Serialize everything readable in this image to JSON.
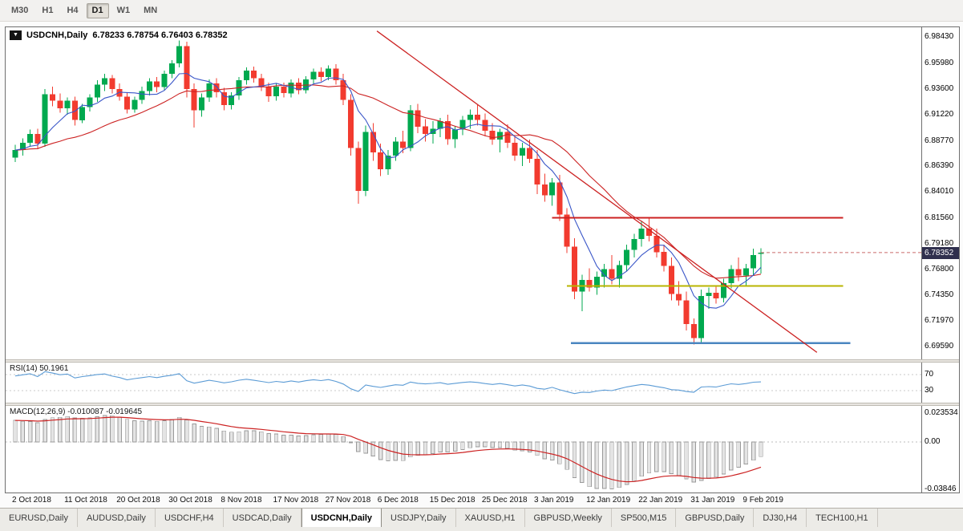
{
  "toolbar": {
    "timeframes": [
      "M30",
      "H1",
      "H4",
      "D1",
      "W1",
      "MN"
    ],
    "active": "D1"
  },
  "icons": {
    "chart_menu": "▼"
  },
  "chart": {
    "symbol_period": "USDCNH,Daily",
    "ohlc": "6.78233 6.78754 6.76403 6.78352",
    "current_price": "6.78352",
    "price_axis": [
      "6.98430",
      "6.95980",
      "6.93600",
      "6.91220",
      "6.88770",
      "6.86390",
      "6.84010",
      "6.81560",
      "6.79180",
      "6.76800",
      "6.74350",
      "6.71970",
      "6.69590"
    ],
    "time_axis": [
      "2 Oct 2018",
      "11 Oct 2018",
      "20 Oct 2018",
      "30 Oct 2018",
      "8 Nov 2018",
      "17 Nov 2018",
      "27 Nov 2018",
      "6 Dec 2018",
      "15 Dec 2018",
      "25 Dec 2018",
      "3 Jan 2019",
      "12 Jan 2019",
      "22 Jan 2019",
      "31 Jan 2019",
      "9 Feb 2019"
    ]
  },
  "rsi": {
    "label": "RSI(14) 50.1961"
  },
  "macd": {
    "label": "MACD(12,26,9) -0.010087 -0.019645",
    "scale": [
      "0.023534",
      "0.00",
      "-0.03846"
    ]
  },
  "tabs": {
    "items": [
      "EURUSD,Daily",
      "AUDUSD,Daily",
      "USDCHF,H4",
      "USDCAD,Daily",
      "USDCNH,Daily",
      "USDJPY,Daily",
      "XAUUSD,H1",
      "GBPUSD,Weekly",
      "SP500,M15",
      "GBPUSD,Daily",
      "DJ30,H4",
      "TECH100,H1"
    ],
    "active_index": 4
  },
  "chart_data": {
    "type": "candlestick",
    "symbol": "USDCNH",
    "timeframe": "Daily",
    "price_range": [
      6.684,
      6.9935
    ],
    "colors": {
      "up": "#00a94f",
      "down": "#f23b2f",
      "price_line": "#c96a6a"
    },
    "candles": [
      [
        6.872,
        6.884,
        6.868,
        6.879
      ],
      [
        6.879,
        6.89,
        6.874,
        6.886
      ],
      [
        6.886,
        6.898,
        6.882,
        6.894
      ],
      [
        6.894,
        6.899,
        6.88,
        6.885
      ],
      [
        6.885,
        6.936,
        6.882,
        6.931
      ],
      [
        6.931,
        6.938,
        6.92,
        6.925
      ],
      [
        6.925,
        6.932,
        6.914,
        6.918
      ],
      [
        6.918,
        6.928,
        6.912,
        6.925
      ],
      [
        6.925,
        6.929,
        6.902,
        6.907
      ],
      [
        6.907,
        6.922,
        6.904,
        6.919
      ],
      [
        6.919,
        6.931,
        6.915,
        6.928
      ],
      [
        6.928,
        6.944,
        6.924,
        6.94
      ],
      [
        6.94,
        6.95,
        6.934,
        6.946
      ],
      [
        6.946,
        6.949,
        6.932,
        6.936
      ],
      [
        6.936,
        6.941,
        6.925,
        6.929
      ],
      [
        6.929,
        6.933,
        6.913,
        6.917
      ],
      [
        6.917,
        6.929,
        6.914,
        6.926
      ],
      [
        6.926,
        6.938,
        6.922,
        6.934
      ],
      [
        6.934,
        6.946,
        6.93,
        6.943
      ],
      [
        6.943,
        6.947,
        6.933,
        6.938
      ],
      [
        6.938,
        6.953,
        6.935,
        6.95
      ],
      [
        6.95,
        6.963,
        6.946,
        6.96
      ],
      [
        6.96,
        6.981,
        6.956,
        6.976
      ],
      [
        6.976,
        6.98,
        6.928,
        6.936
      ],
      [
        6.936,
        6.941,
        6.9,
        6.916
      ],
      [
        6.916,
        6.932,
        6.91,
        6.928
      ],
      [
        6.928,
        6.945,
        6.924,
        6.941
      ],
      [
        6.941,
        6.946,
        6.928,
        6.933
      ],
      [
        6.933,
        6.937,
        6.916,
        6.921
      ],
      [
        6.921,
        6.933,
        6.917,
        6.93
      ],
      [
        6.93,
        6.947,
        6.926,
        6.944
      ],
      [
        6.944,
        6.956,
        6.94,
        6.953
      ],
      [
        6.953,
        6.957,
        6.942,
        6.946
      ],
      [
        6.946,
        6.95,
        6.934,
        6.938
      ],
      [
        6.938,
        6.942,
        6.924,
        6.929
      ],
      [
        6.929,
        6.941,
        6.925,
        6.938
      ],
      [
        6.938,
        6.942,
        6.928,
        6.932
      ],
      [
        6.932,
        6.945,
        6.928,
        6.942
      ],
      [
        6.942,
        6.946,
        6.931,
        6.935
      ],
      [
        6.935,
        6.948,
        6.932,
        6.945
      ],
      [
        6.945,
        6.955,
        6.941,
        6.952
      ],
      [
        6.952,
        6.956,
        6.943,
        6.947
      ],
      [
        6.947,
        6.958,
        6.944,
        6.955
      ],
      [
        6.955,
        6.959,
        6.94,
        6.944
      ],
      [
        6.944,
        6.95,
        6.921,
        6.926
      ],
      [
        6.926,
        6.931,
        6.874,
        6.881
      ],
      [
        6.881,
        6.887,
        6.829,
        6.841
      ],
      [
        6.841,
        6.902,
        6.836,
        6.896
      ],
      [
        6.896,
        6.904,
        6.869,
        6.877
      ],
      [
        6.877,
        6.885,
        6.855,
        6.861
      ],
      [
        6.861,
        6.879,
        6.856,
        6.874
      ],
      [
        6.874,
        6.891,
        6.869,
        6.887
      ],
      [
        6.887,
        6.897,
        6.876,
        6.881
      ],
      [
        6.881,
        6.921,
        6.878,
        6.916
      ],
      [
        6.916,
        6.922,
        6.895,
        6.901
      ],
      [
        6.901,
        6.908,
        6.887,
        6.894
      ],
      [
        6.894,
        6.906,
        6.885,
        6.899
      ],
      [
        6.899,
        6.909,
        6.891,
        6.906
      ],
      [
        6.906,
        6.912,
        6.884,
        6.889
      ],
      [
        6.889,
        6.901,
        6.881,
        6.898
      ],
      [
        6.898,
        6.911,
        6.893,
        6.907
      ],
      [
        6.907,
        6.917,
        6.899,
        6.912
      ],
      [
        6.912,
        6.921,
        6.902,
        6.907
      ],
      [
        6.907,
        6.913,
        6.892,
        6.897
      ],
      [
        6.897,
        6.904,
        6.884,
        6.889
      ],
      [
        6.889,
        6.899,
        6.877,
        6.896
      ],
      [
        6.896,
        6.903,
        6.881,
        6.886
      ],
      [
        6.886,
        6.891,
        6.869,
        6.874
      ],
      [
        6.874,
        6.886,
        6.864,
        6.881
      ],
      [
        6.881,
        6.889,
        6.867,
        6.871
      ],
      [
        6.871,
        6.879,
        6.838,
        6.847
      ],
      [
        6.847,
        6.857,
        6.831,
        6.837
      ],
      [
        6.837,
        6.853,
        6.827,
        6.849
      ],
      [
        6.849,
        6.856,
        6.813,
        6.819
      ],
      [
        6.819,
        6.825,
        6.783,
        6.789
      ],
      [
        6.789,
        6.797,
        6.74,
        6.747
      ],
      [
        6.747,
        6.763,
        6.729,
        6.758
      ],
      [
        6.758,
        6.769,
        6.747,
        6.751
      ],
      [
        6.751,
        6.766,
        6.744,
        6.761
      ],
      [
        6.761,
        6.773,
        6.751,
        6.768
      ],
      [
        6.768,
        6.781,
        6.754,
        6.759
      ],
      [
        6.759,
        6.776,
        6.751,
        6.772
      ],
      [
        6.772,
        6.791,
        6.766,
        6.786
      ],
      [
        6.786,
        6.801,
        6.779,
        6.796
      ],
      [
        6.796,
        6.813,
        6.789,
        6.806
      ],
      [
        6.806,
        6.816,
        6.794,
        6.799
      ],
      [
        6.799,
        6.806,
        6.779,
        6.784
      ],
      [
        6.784,
        6.791,
        6.766,
        6.771
      ],
      [
        6.771,
        6.779,
        6.739,
        6.745
      ],
      [
        6.745,
        6.757,
        6.734,
        6.739
      ],
      [
        6.739,
        6.747,
        6.711,
        6.717
      ],
      [
        6.717,
        6.722,
        6.698,
        6.704
      ],
      [
        6.704,
        6.749,
        6.699,
        6.743
      ],
      [
        6.743,
        6.751,
        6.731,
        6.746
      ],
      [
        6.746,
        6.753,
        6.736,
        6.741
      ],
      [
        6.741,
        6.759,
        6.737,
        6.755
      ],
      [
        6.755,
        6.772,
        6.75,
        6.768
      ],
      [
        6.768,
        6.779,
        6.757,
        6.762
      ],
      [
        6.762,
        6.773,
        6.753,
        6.769
      ],
      [
        6.769,
        6.787,
        6.763,
        6.781
      ],
      [
        6.78233,
        6.78754,
        6.76403,
        6.78352
      ]
    ],
    "overlays": {
      "ma_fast": {
        "type": "sma",
        "period": 6,
        "color": "#3a56c8"
      },
      "ma_slow": {
        "type": "sma",
        "period": 20,
        "color": "#cc2222"
      },
      "trendline": {
        "from_index": 48.5,
        "from_price": 6.99,
        "to_index": 107.5,
        "to_price": 6.6905,
        "color": "#cc2222"
      },
      "hlines": [
        {
          "price": 6.816,
          "from_index": 72,
          "to_index": 111,
          "color": "#cc2222",
          "width": 2
        },
        {
          "price": 6.7525,
          "from_index": 74,
          "to_index": 111,
          "color": "#b9b400",
          "width": 2
        },
        {
          "price": 6.699,
          "from_index": 74.5,
          "to_index": 112,
          "color": "#4a86c0",
          "width": 2.5
        }
      ]
    },
    "rsi": {
      "period": 14,
      "seed_gain": 0.004,
      "seed_loss": 0.002,
      "levels": [
        70,
        30
      ],
      "color": "#5b9bd5",
      "range": [
        0,
        100
      ]
    },
    "macd": {
      "fast": 12,
      "slow": 26,
      "signal": 9,
      "seed_offset": 0.019,
      "signal_color": "#cc2222",
      "hist_fill": "#e4e4e4",
      "hist_stroke": "#9a9a9a"
    }
  }
}
